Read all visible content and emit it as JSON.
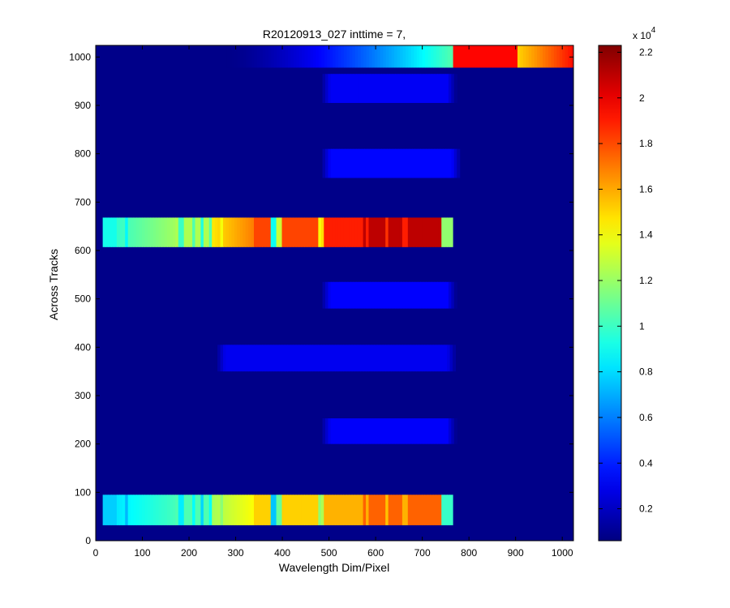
{
  "chart_data": {
    "type": "heatmap",
    "title": "R20120913_027 inttime = 7,",
    "xlabel": "Wavelength Dim/Pixel",
    "ylabel": "Across Tracks",
    "xlim": [
      0,
      1024
    ],
    "ylim": [
      0,
      1024
    ],
    "x_ticks": [
      0,
      100,
      200,
      300,
      400,
      500,
      600,
      700,
      800,
      900,
      1000
    ],
    "y_ticks": [
      0,
      100,
      200,
      300,
      400,
      500,
      600,
      700,
      800,
      900,
      1000
    ],
    "colormap": "jet",
    "background_value": 800,
    "colorbar": {
      "range": [
        600,
        22300
      ],
      "ticks": [
        0.2,
        0.4,
        0.6,
        0.8,
        1,
        1.2,
        1.4,
        1.6,
        1.8,
        2,
        2.2
      ],
      "multiplier_base": "x 10",
      "multiplier_exponent": "4"
    },
    "bands": [
      {
        "y": [
          32,
          95
        ],
        "x": [
          15,
          760
        ],
        "peak": 17500,
        "profile": "spectrum"
      },
      {
        "y": [
          607,
          668
        ],
        "x": [
          15,
          760
        ],
        "peak": 21000,
        "profile": "spectrum"
      },
      {
        "y": [
          200,
          253
        ],
        "x": [
          480,
          770
        ],
        "peak": 3200,
        "profile": "flat"
      },
      {
        "y": [
          350,
          405
        ],
        "x": [
          255,
          770
        ],
        "peak": 3000,
        "profile": "flat"
      },
      {
        "y": [
          480,
          535
        ],
        "x": [
          480,
          770
        ],
        "peak": 3300,
        "profile": "flat"
      },
      {
        "y": [
          750,
          810
        ],
        "x": [
          480,
          780
        ],
        "peak": 3400,
        "profile": "flat"
      },
      {
        "y": [
          905,
          965
        ],
        "x": [
          480,
          770
        ],
        "peak": 3100,
        "profile": "flat"
      },
      {
        "y": [
          978,
          1024
        ],
        "x": [
          280,
          1024
        ],
        "peak": 19500,
        "profile": "ramp"
      }
    ]
  }
}
